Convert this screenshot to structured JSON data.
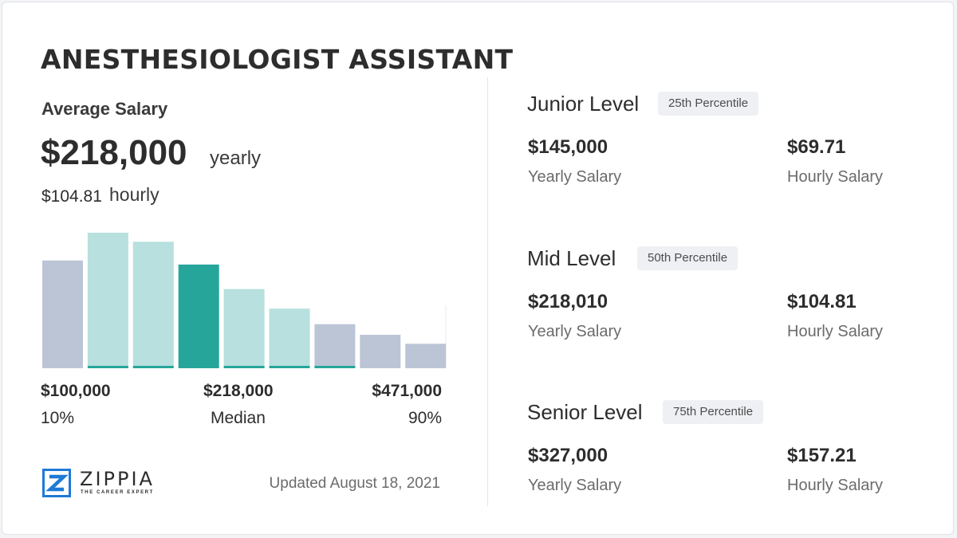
{
  "title": "ANESTHESIOLOGIST ASSISTANT",
  "average": {
    "label": "Average Salary",
    "value": "$218,000",
    "unit": "yearly",
    "hourly_value": "$104.81",
    "hourly_unit": "hourly"
  },
  "chart_data": {
    "type": "bar",
    "title": "",
    "xlabel": "",
    "ylabel": "",
    "bins": 9,
    "values": [
      132,
      166,
      155,
      127,
      97,
      73,
      54,
      41,
      30
    ],
    "colors": [
      "#bcc5d6",
      "#b7e0de",
      "#b7e0de",
      "#26a69a",
      "#b7e0de",
      "#b7e0de",
      "#bcc5d6",
      "#bcc5d6",
      "#bcc5d6"
    ],
    "baseline_accents": [
      false,
      true,
      true,
      false,
      true,
      true,
      true,
      false,
      false
    ],
    "accent_color": "#26a69a",
    "ticks": [
      {
        "value": "$100,000",
        "label": "10%",
        "align": "left"
      },
      {
        "value": "$218,000",
        "label": "Median",
        "align": "center"
      },
      {
        "value": "$471,000",
        "label": "90%",
        "align": "right"
      }
    ]
  },
  "levels": [
    {
      "name": "Junior Level",
      "percentile": "25th Percentile",
      "yearly": "$145,000",
      "yearly_label": "Yearly Salary",
      "hourly": "$69.71",
      "hourly_label": "Hourly Salary"
    },
    {
      "name": "Mid Level",
      "percentile": "50th Percentile",
      "yearly": "$218,010",
      "yearly_label": "Yearly Salary",
      "hourly": "$104.81",
      "hourly_label": "Hourly Salary"
    },
    {
      "name": "Senior Level",
      "percentile": "75th Percentile",
      "yearly": "$327,000",
      "yearly_label": "Yearly Salary",
      "hourly": "$157.21",
      "hourly_label": "Hourly Salary"
    }
  ],
  "footer": {
    "brand": "ZIPPIA",
    "tagline": "THE CAREER EXPERT",
    "updated": "Updated August 18, 2021"
  },
  "colors": {
    "accent": "#26a69a",
    "logo_blue": "#1f7ad6"
  }
}
